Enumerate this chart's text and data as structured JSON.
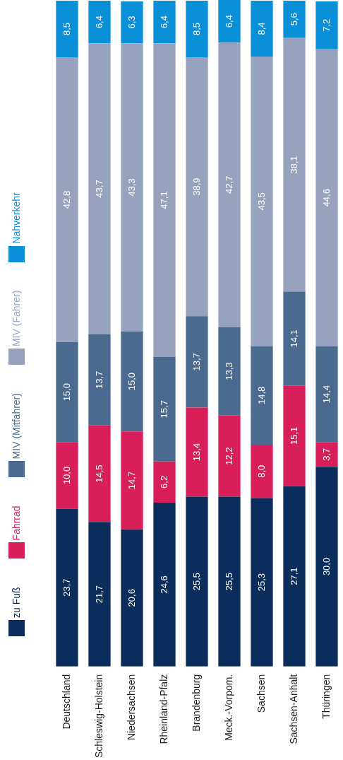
{
  "chart_data": {
    "type": "bar",
    "stacked": true,
    "legend": "left",
    "categories": [
      "Deutschland",
      "Schleswig-Holstein",
      "Niedersachsen",
      "Rheinland-Pfalz",
      "Brandenburg",
      "Meck.-Vorpom.",
      "Sachsen",
      "Sachsen-Anhalt",
      "Thüringen"
    ],
    "series": [
      {
        "name": "zu Fuß",
        "color": "#0b2d5b",
        "values": [
          23.7,
          21.7,
          20.6,
          24.6,
          25.5,
          25.5,
          25.3,
          27.1,
          30.0
        ],
        "value_labels": [
          "23,7",
          "21,7",
          "20,6",
          "24,6",
          "25,5",
          "25,5",
          "25,3",
          "27,1",
          "30,0"
        ]
      },
      {
        "name": "Fahrrad",
        "color": "#d91f5a",
        "values": [
          10.0,
          14.5,
          14.7,
          6.2,
          13.4,
          12.2,
          8.0,
          15.1,
          3.7
        ],
        "value_labels": [
          "10,0",
          "14,5",
          "14,7",
          "6,2",
          "13,4",
          "12,2",
          "8,0",
          "15,1",
          "3,7"
        ]
      },
      {
        "name": "MIV (Mitfahrer)",
        "color": "#4a6a8f",
        "values": [
          15.0,
          13.7,
          15.0,
          15.7,
          13.7,
          13.3,
          14.8,
          14.1,
          14.4
        ],
        "value_labels": [
          "15,0",
          "13,7",
          "15,0",
          "15,7",
          "13,7",
          "13,3",
          "14,8",
          "14,1",
          "14,4"
        ]
      },
      {
        "name": "MIV (Fahrer)",
        "color": "#97a3be",
        "values": [
          42.8,
          43.7,
          43.3,
          47.1,
          38.9,
          42.7,
          43.5,
          38.1,
          44.6
        ],
        "value_labels": [
          "42,8",
          "43,7",
          "43,3",
          "47,1",
          "38,9",
          "42,7",
          "43,5",
          "38,1",
          "44,6"
        ]
      },
      {
        "name": "Nahverkehr",
        "color": "#0a90d8",
        "values": [
          8.5,
          6.4,
          6.3,
          6.4,
          8.5,
          6.4,
          8.4,
          5.6,
          7.2
        ],
        "value_labels": [
          "8,5",
          "6,4",
          "6,3",
          "6,4",
          "8,5",
          "6,4",
          "8,4",
          "5,6",
          "7,2"
        ]
      }
    ]
  }
}
